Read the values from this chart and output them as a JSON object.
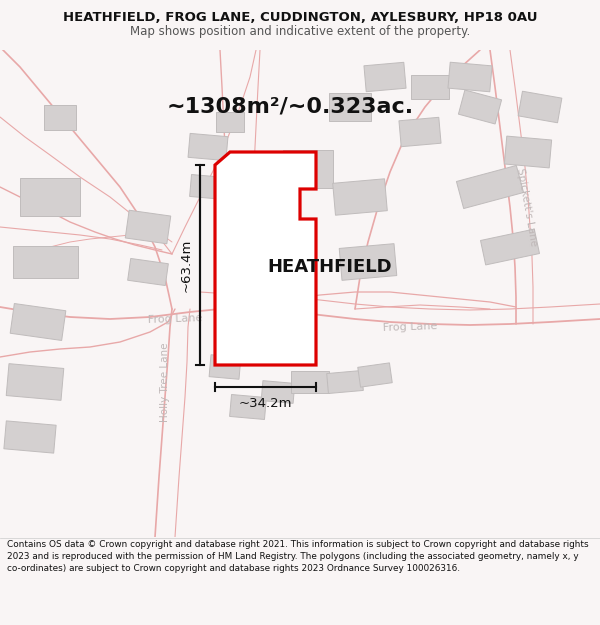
{
  "title_line1": "HEATHFIELD, FROG LANE, CUDDINGTON, AYLESBURY, HP18 0AU",
  "title_line2": "Map shows position and indicative extent of the property.",
  "area_text": "~1308m²/~0.323ac.",
  "property_label": "HEATHFIELD",
  "dim_vertical": "~63.4m",
  "dim_horizontal": "~34.2m",
  "footer_text": "Contains OS data © Crown copyright and database right 2021. This information is subject to Crown copyright and database rights 2023 and is reproduced with the permission of HM Land Registry. The polygons (including the associated geometry, namely x, y co-ordinates) are subject to Crown copyright and database rights 2023 Ordnance Survey 100026316.",
  "map_bg": "#f9f5f5",
  "road_color": "#e8a8a8",
  "building_color": "#d4d0d0",
  "building_edge": "#c0bcbc",
  "property_fill": "#ffffff",
  "property_edge": "#dd0000",
  "dim_color": "#111111",
  "road_label_color": "#c0b8b8",
  "text_color": "#111111",
  "footer_color": "#111111",
  "footer_bg": "#ffffff",
  "title_bg": "#f9f5f5"
}
